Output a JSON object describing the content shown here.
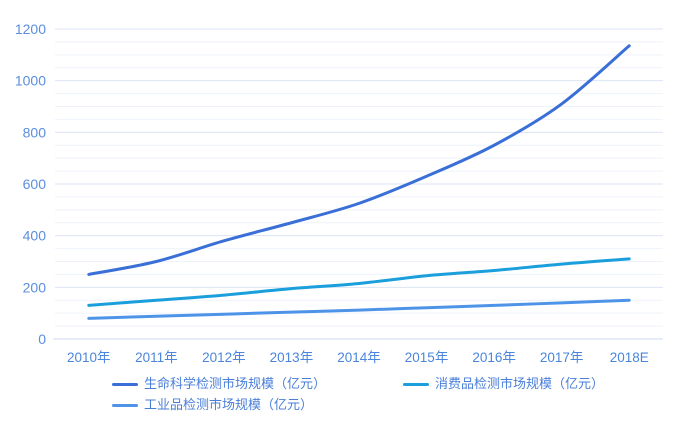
{
  "chart_data": {
    "type": "line",
    "title": "",
    "xlabel": "",
    "ylabel": "",
    "categories": [
      "2010年",
      "2011年",
      "2012年",
      "2013年",
      "2014年",
      "2015年",
      "2016年",
      "2017年",
      "2018E"
    ],
    "series": [
      {
        "name": "生命科学检测市场规模（亿元）",
        "color": "#3a6fd8",
        "values": [
          250,
          300,
          380,
          450,
          525,
          630,
          750,
          910,
          1135
        ]
      },
      {
        "name": "消费品检测市场规模（亿元）",
        "color": "#1a9fdc",
        "values": [
          130,
          150,
          170,
          195,
          215,
          245,
          265,
          290,
          310
        ]
      },
      {
        "name": "工业品检测市场规模（亿元）",
        "color": "#4d94e8",
        "values": [
          80,
          88,
          96,
          104,
          112,
          121,
          130,
          140,
          150
        ]
      }
    ],
    "y_ticks": [
      0,
      200,
      400,
      600,
      800,
      1000,
      1200
    ],
    "ylim": [
      0,
      1200
    ],
    "y_major_step": 200,
    "y_minor_step": 50,
    "grid": true,
    "legend_position": "bottom",
    "smooth": true
  },
  "colors": {
    "background": "#ffffff",
    "y_tick_label": "#5b8ede",
    "x_tick_label": "#4a86dd",
    "legend_text": "#4a7fd8",
    "grid_major": "#dbe5f5",
    "grid_minor": "#eef3fb",
    "axis_line": "#ccdaf1"
  }
}
